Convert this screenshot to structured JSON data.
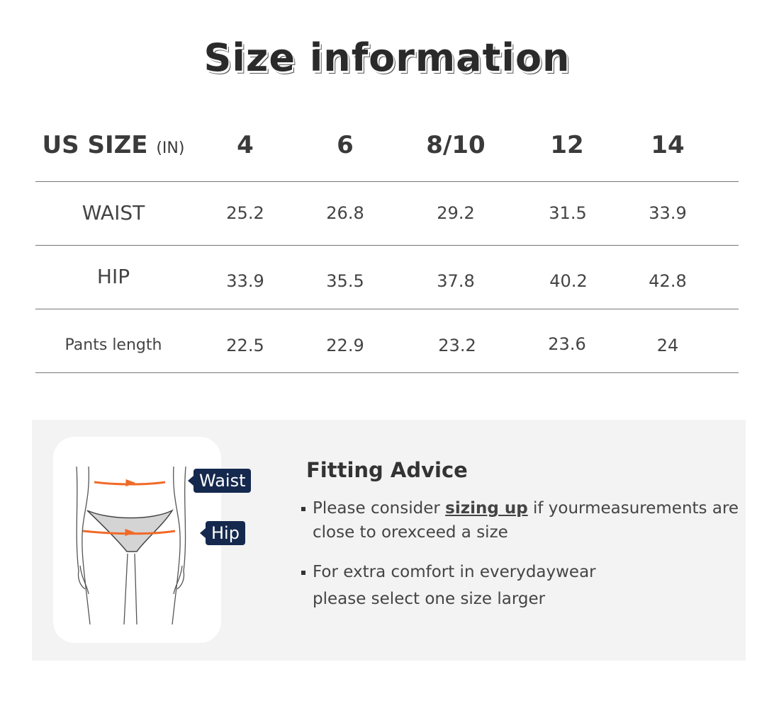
{
  "title": "Size information",
  "table": {
    "header": {
      "label": "US SIZE",
      "unit": "(IN)",
      "sizes": [
        "4",
        "6",
        "8/10",
        "12",
        "14"
      ]
    },
    "rows": [
      {
        "label": "WAIST",
        "values": [
          "25.2",
          "26.8",
          "29.2",
          "31.5",
          "33.9"
        ]
      },
      {
        "label": "HIP",
        "values": [
          "33.9",
          "35.5",
          "37.8",
          "40.2",
          "42.8"
        ]
      },
      {
        "label": "Pants length",
        "values": [
          "22.5",
          "22.9",
          "23.2",
          "23.6",
          "24"
        ]
      }
    ]
  },
  "figure": {
    "waist_label": "Waist",
    "hip_label": "Hip",
    "tag_color": "#15294e",
    "arrow_color": "#f06a28"
  },
  "advice": {
    "title": "Fitting Advice",
    "bullet1": {
      "before": "Please consider ",
      "emphasis": "sizing up",
      "after": " if yourmeasurements are",
      "line2": "close to orexceed a size"
    },
    "bullet2": {
      "line1": "For extra comfort in everydaywear",
      "line2": "please select one size larger"
    }
  }
}
